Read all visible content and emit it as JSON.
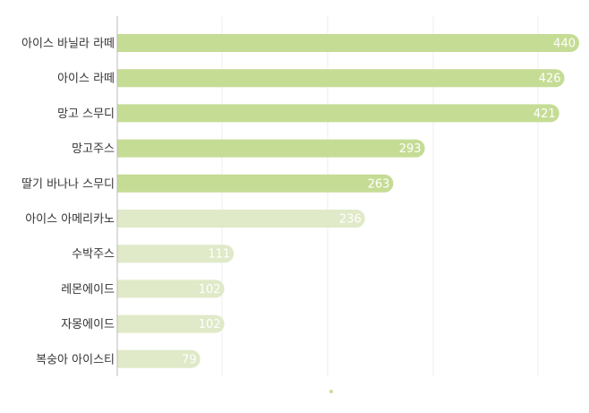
{
  "chart_data": {
    "type": "bar",
    "orientation": "horizontal",
    "categories": [
      "아이스 바닐라 라떼",
      "아이스 라떼",
      "망고 스무디",
      "망고주스",
      "딸기 바나나 스무디",
      "아이스 아메리카노",
      "수박주스",
      "레몬에이드",
      "자몽에이드",
      "복숭아 아이스티"
    ],
    "values": [
      440,
      426,
      421,
      293,
      263,
      236,
      111,
      102,
      102,
      79
    ],
    "value_labels": [
      "440",
      "426",
      "421",
      "293",
      "263",
      "236",
      "111",
      "102",
      "102",
      "79"
    ],
    "xlim": [
      0,
      440
    ],
    "grid": true,
    "legend": "bottom-center",
    "colors": {
      "strong": "#c5dc95",
      "light": "#e0e9c8",
      "grid": "#eeeeee",
      "axis": "#bbbbbb",
      "legend_dot": "#c9de98"
    },
    "highlighted_count": 5
  }
}
